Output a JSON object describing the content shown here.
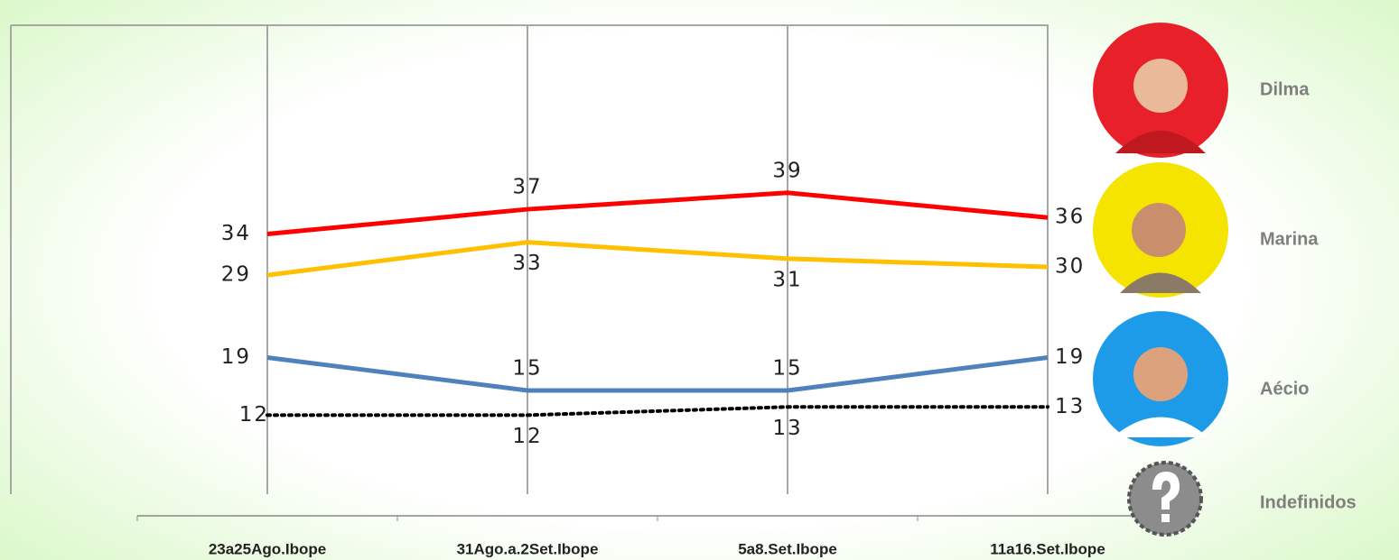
{
  "chart_data": {
    "type": "line",
    "categories": [
      "23a25Ago.Ibope",
      "31Ago.a.2Set.Ibope",
      "5a8.Set.Ibope",
      "11a16.Set.Ibope"
    ],
    "series": [
      {
        "name": "Dilma",
        "color": "#ff0000",
        "values": [
          34,
          37,
          39,
          36
        ]
      },
      {
        "name": "Marina",
        "color": "#ffc000",
        "values": [
          29,
          33,
          31,
          30
        ]
      },
      {
        "name": "Aécio",
        "color": "#4f81bd",
        "values": [
          19,
          15,
          15,
          19
        ]
      },
      {
        "name": "Indefinidos",
        "color": "#000000",
        "values": [
          12,
          12,
          13,
          13
        ]
      }
    ],
    "ylim": [
      0,
      60
    ],
    "grid": true
  }
}
